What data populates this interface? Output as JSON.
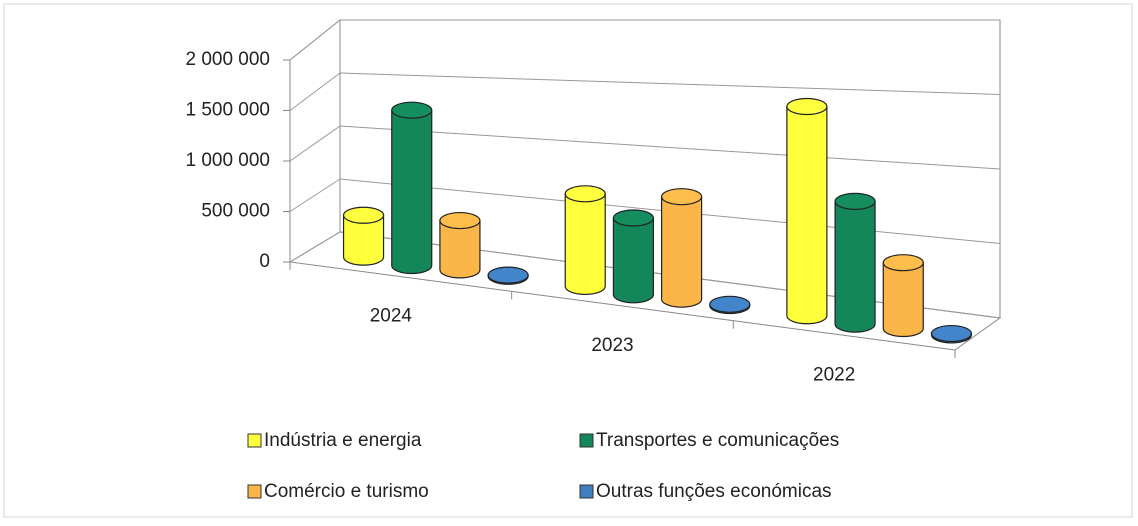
{
  "chart_data": {
    "type": "bar3d",
    "categories": [
      "2024",
      "2023",
      "2022"
    ],
    "series": [
      {
        "name": "Indústria e energia",
        "color": "#ffff3c",
        "values": [
          400000,
          800000,
          1650000
        ]
      },
      {
        "name": "Transportes e comunicações",
        "color": "#13865a",
        "values": [
          1450000,
          650000,
          950000
        ]
      },
      {
        "name": "Comércio e turismo",
        "color": "#fbb548",
        "values": [
          450000,
          850000,
          500000
        ]
      },
      {
        "name": "Outras funções económicas",
        "color": "#3f7fc0",
        "values": [
          10000,
          10000,
          10000
        ]
      }
    ],
    "ylim": [
      0,
      2000000
    ],
    "yticks": [
      {
        "value": 0,
        "label": "0"
      },
      {
        "value": 500000,
        "label": "500 000"
      },
      {
        "value": 1000000,
        "label": "1 000 000"
      },
      {
        "value": 1500000,
        "label": "1 500 000"
      },
      {
        "value": 2000000,
        "label": "2 000 000"
      }
    ],
    "grid": true,
    "legend": "bottom"
  }
}
